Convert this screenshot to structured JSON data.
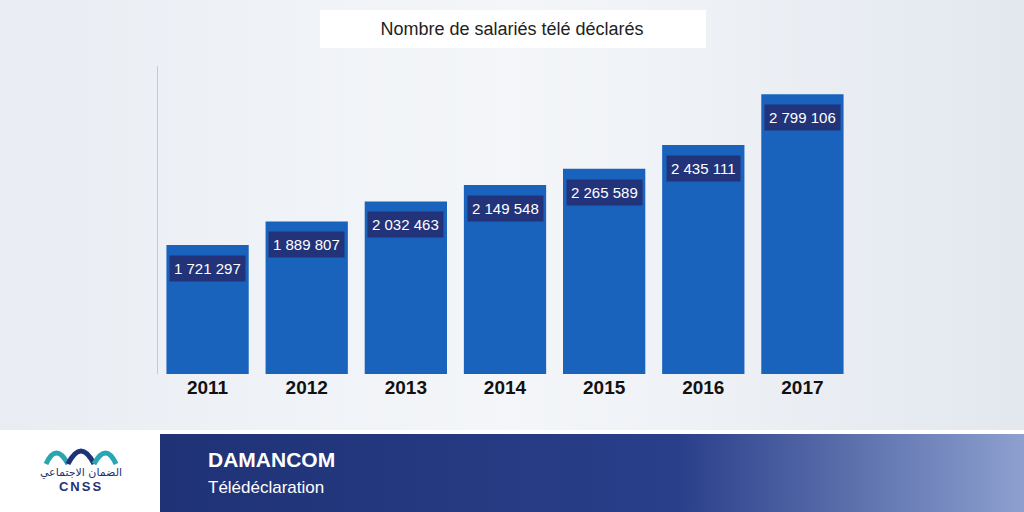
{
  "chart_data": {
    "type": "bar",
    "title": "Nombre de salariés télé déclarés",
    "categories": [
      "2011",
      "2012",
      "2013",
      "2014",
      "2015",
      "2016",
      "2017"
    ],
    "values": [
      1721297,
      1889807,
      2032463,
      2149548,
      2265589,
      2435111,
      2799106
    ],
    "value_labels": [
      "1 721 297",
      "1 889 807",
      "2 032 463",
      "2 149 548",
      "2 265 589",
      "2 435 111",
      "2 799 106"
    ],
    "data_labels": true,
    "color": "#1a63bd",
    "ylim": [
      800000,
      3000000
    ],
    "yticks": [],
    "grid": false,
    "tick_labels": "x",
    "annotations": [
      "DAMANCOM",
      "Télédéclaration",
      "الضمان الاجتماعي",
      "CNSS"
    ]
  }
}
